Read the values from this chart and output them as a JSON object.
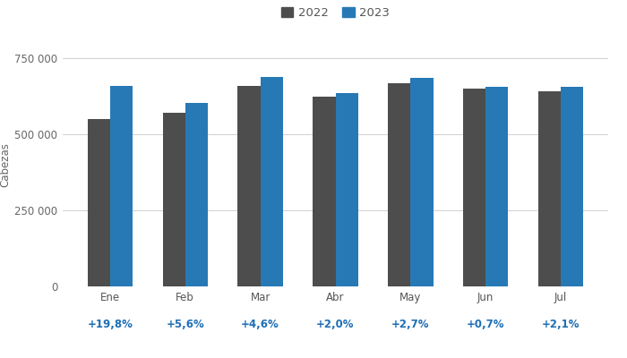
{
  "months": [
    "Ene",
    "Feb",
    "Mar",
    "Abr",
    "May",
    "Jun",
    "Jul"
  ],
  "values_2022": [
    550000,
    571000,
    659000,
    624000,
    667000,
    651000,
    641000
  ],
  "values_2023": [
    658890,
    602976,
    689414,
    636480,
    685009,
    655557,
    654481
  ],
  "pct_changes": [
    "+19,8%",
    "+5,6%",
    "+4,6%",
    "+2,0%",
    "+2,7%",
    "+0,7%",
    "+2,1%"
  ],
  "color_2022": "#4d4d4d",
  "color_2023": "#2779b5",
  "ylabel": "Cabezas",
  "legend_labels": [
    "2022",
    "2023"
  ],
  "yticks": [
    0,
    250000,
    500000,
    750000
  ],
  "ytick_labels": [
    "0",
    "250 000",
    "500 000",
    "750 000"
  ],
  "ylim": [
    0,
    800000
  ],
  "pct_color": "#1f6fb5",
  "bg_color": "#ffffff",
  "grid_color": "#d0d0d0",
  "legend_fontsize": 9.5,
  "axis_label_fontsize": 8.5,
  "tick_fontsize": 8.5,
  "pct_fontsize": 8.5
}
